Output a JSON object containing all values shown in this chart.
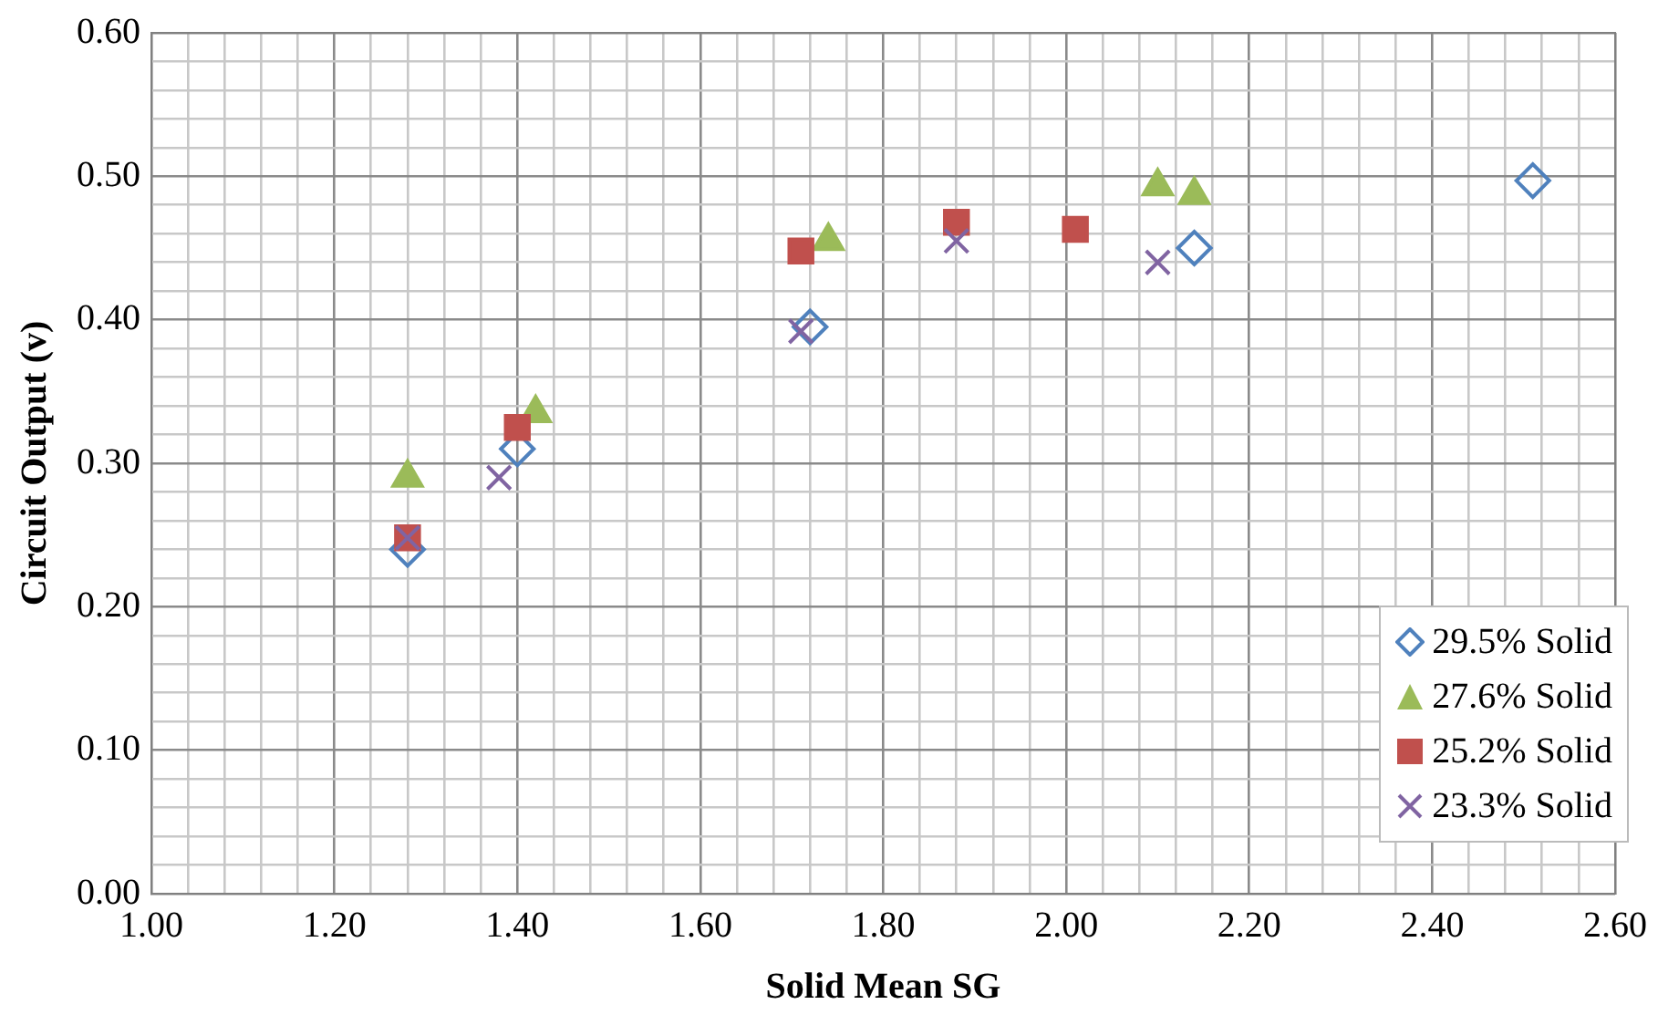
{
  "chart_data": {
    "type": "scatter",
    "xlabel": "Solid Mean SG",
    "ylabel": "Circuit Output (v)",
    "xlim": [
      1.0,
      2.6
    ],
    "ylim": [
      0,
      0.6
    ],
    "xticks": [
      {
        "value": 1.0,
        "label": "1.00"
      },
      {
        "value": 1.04,
        "label": null
      },
      {
        "value": 1.08,
        "label": null
      },
      {
        "value": 1.12,
        "label": null
      },
      {
        "value": 1.16,
        "label": null
      },
      {
        "value": 1.2,
        "label": "1.20"
      },
      {
        "value": 1.24,
        "label": null
      },
      {
        "value": 1.28,
        "label": null
      },
      {
        "value": 1.32,
        "label": null
      },
      {
        "value": 1.36,
        "label": null
      },
      {
        "value": 1.4,
        "label": "1.40"
      },
      {
        "value": 1.44,
        "label": null
      },
      {
        "value": 1.48,
        "label": null
      },
      {
        "value": 1.52,
        "label": null
      },
      {
        "value": 1.56,
        "label": null
      },
      {
        "value": 1.6,
        "label": "1.60"
      },
      {
        "value": 1.64,
        "label": null
      },
      {
        "value": 1.68,
        "label": null
      },
      {
        "value": 1.72,
        "label": null
      },
      {
        "value": 1.76,
        "label": null
      },
      {
        "value": 1.8,
        "label": "1.80"
      },
      {
        "value": 1.84,
        "label": null
      },
      {
        "value": 1.88,
        "label": null
      },
      {
        "value": 1.92,
        "label": null
      },
      {
        "value": 1.96,
        "label": null
      },
      {
        "value": 2.0,
        "label": "2.00"
      },
      {
        "value": 2.04,
        "label": null
      },
      {
        "value": 2.08,
        "label": null
      },
      {
        "value": 2.12,
        "label": null
      },
      {
        "value": 2.16,
        "label": null
      },
      {
        "value": 2.2,
        "label": "2.20"
      },
      {
        "value": 2.24,
        "label": null
      },
      {
        "value": 2.28,
        "label": null
      },
      {
        "value": 2.32,
        "label": null
      },
      {
        "value": 2.36,
        "label": null
      },
      {
        "value": 2.4,
        "label": "2.40"
      },
      {
        "value": 2.44,
        "label": null
      },
      {
        "value": 2.48,
        "label": null
      },
      {
        "value": 2.52,
        "label": null
      },
      {
        "value": 2.56,
        "label": null
      },
      {
        "value": 2.6,
        "label": "2.60"
      }
    ],
    "yticks": [
      {
        "value": 0,
        "label": "0.00"
      },
      {
        "value": 0.02,
        "label": null
      },
      {
        "value": 0.04,
        "label": null
      },
      {
        "value": 0.06,
        "label": null
      },
      {
        "value": 0.08,
        "label": null
      },
      {
        "value": 0.1,
        "label": "0.10"
      },
      {
        "value": 0.12,
        "label": null
      },
      {
        "value": 0.14,
        "label": null
      },
      {
        "value": 0.16,
        "label": null
      },
      {
        "value": 0.18,
        "label": null
      },
      {
        "value": 0.2,
        "label": "0.20"
      },
      {
        "value": 0.22,
        "label": null
      },
      {
        "value": 0.24,
        "label": null
      },
      {
        "value": 0.26,
        "label": null
      },
      {
        "value": 0.28,
        "label": null
      },
      {
        "value": 0.3,
        "label": "0.30"
      },
      {
        "value": 0.32,
        "label": null
      },
      {
        "value": 0.34,
        "label": null
      },
      {
        "value": 0.36,
        "label": null
      },
      {
        "value": 0.38,
        "label": null
      },
      {
        "value": 0.4,
        "label": "0.40"
      },
      {
        "value": 0.42,
        "label": null
      },
      {
        "value": 0.44,
        "label": null
      },
      {
        "value": 0.46,
        "label": null
      },
      {
        "value": 0.48,
        "label": null
      },
      {
        "value": 0.5,
        "label": "0.50"
      },
      {
        "value": 0.52,
        "label": null
      },
      {
        "value": 0.54,
        "label": null
      },
      {
        "value": 0.56,
        "label": null
      },
      {
        "value": 0.58,
        "label": null
      },
      {
        "value": 0.6,
        "label": "0.60"
      }
    ],
    "grid": true,
    "legend": "bottom right",
    "series": [
      {
        "name": "29.5% Solid",
        "color": "#4f81bd",
        "marker": "diamond",
        "x": [
          1.28,
          1.4,
          1.72,
          2.14,
          2.51
        ],
        "values": [
          0.24,
          0.31,
          0.395,
          0.45,
          0.497
        ]
      },
      {
        "name": "27.6% Solid",
        "color": "#9bbb59",
        "marker": "triangle",
        "x": [
          1.28,
          1.42,
          1.74,
          2.1,
          2.14
        ],
        "values": [
          0.29,
          0.335,
          0.455,
          0.493,
          0.487
        ]
      },
      {
        "name": "25.2% Solid",
        "color": "#c0504d",
        "marker": "square",
        "x": [
          1.28,
          1.4,
          1.71,
          1.88,
          2.01
        ],
        "values": [
          0.248,
          0.325,
          0.448,
          0.468,
          0.463
        ]
      },
      {
        "name": "23.3% Solid",
        "color": "#8064a2",
        "marker": "cross",
        "x": [
          1.28,
          1.38,
          1.71,
          1.88,
          2.1
        ],
        "values": [
          0.248,
          0.29,
          0.392,
          0.455,
          0.44
        ]
      }
    ]
  }
}
